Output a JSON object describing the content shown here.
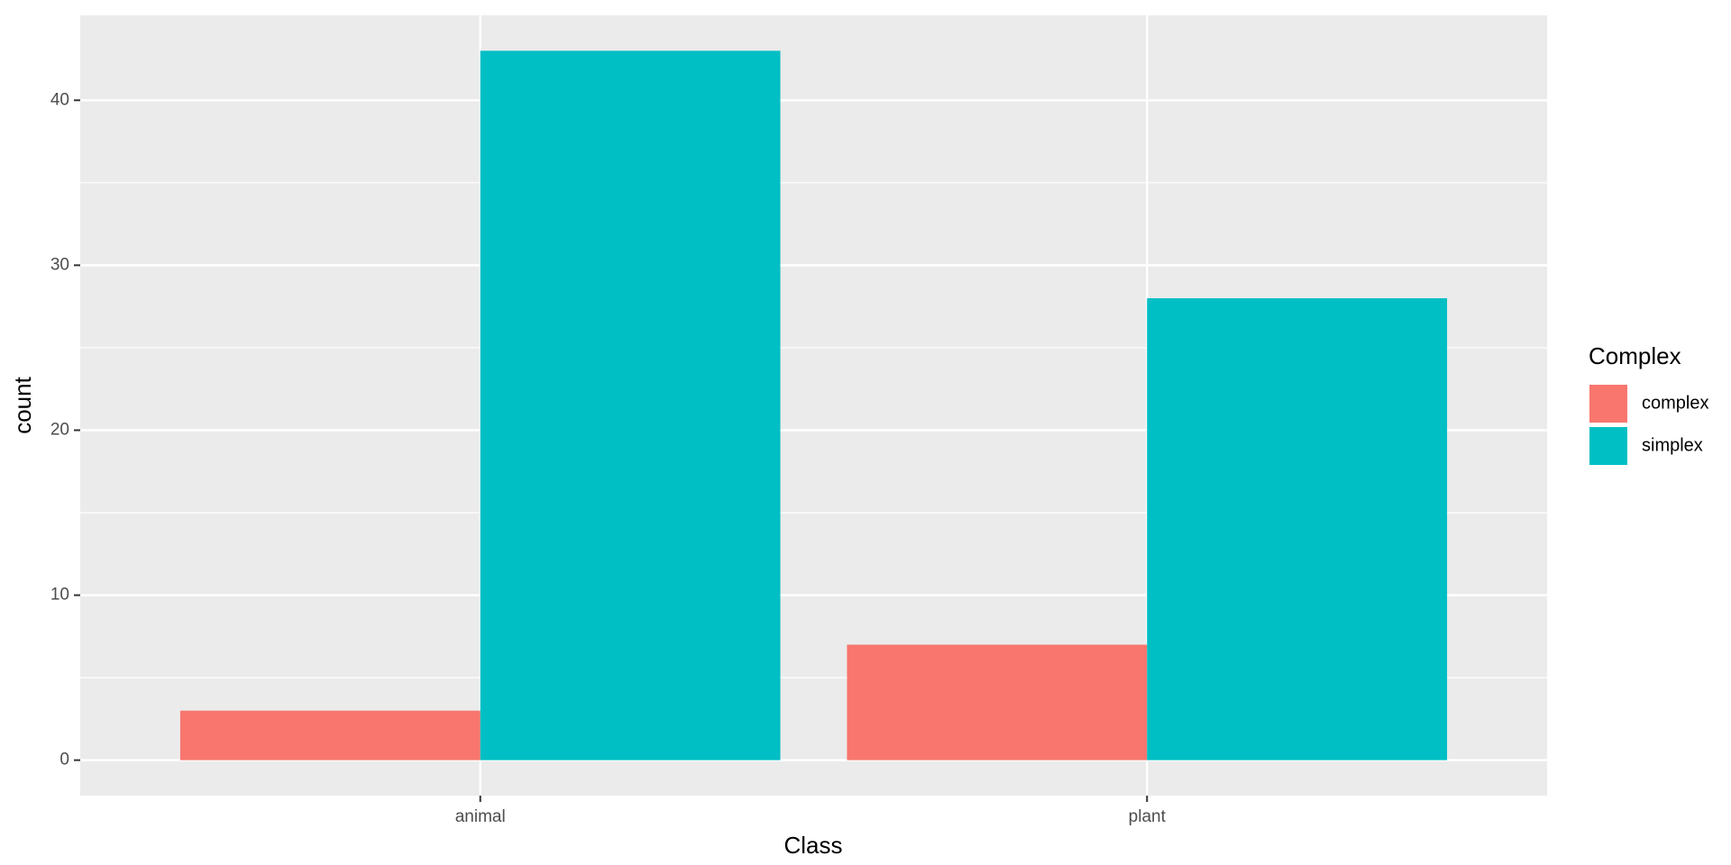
{
  "chart_data": {
    "type": "bar",
    "categories": [
      "animal",
      "plant"
    ],
    "series": [
      {
        "name": "complex",
        "color": "#F8766D",
        "values": [
          3,
          7
        ]
      },
      {
        "name": "simplex",
        "color": "#00BFC4",
        "values": [
          43,
          28
        ]
      }
    ],
    "ylim": [
      -2.15,
      45.15
    ],
    "yticks": [
      0,
      10,
      20,
      30,
      40
    ],
    "xlabel": "Class",
    "ylabel": "count",
    "legend_title": "Complex",
    "grid": true,
    "legend_position": "right"
  }
}
